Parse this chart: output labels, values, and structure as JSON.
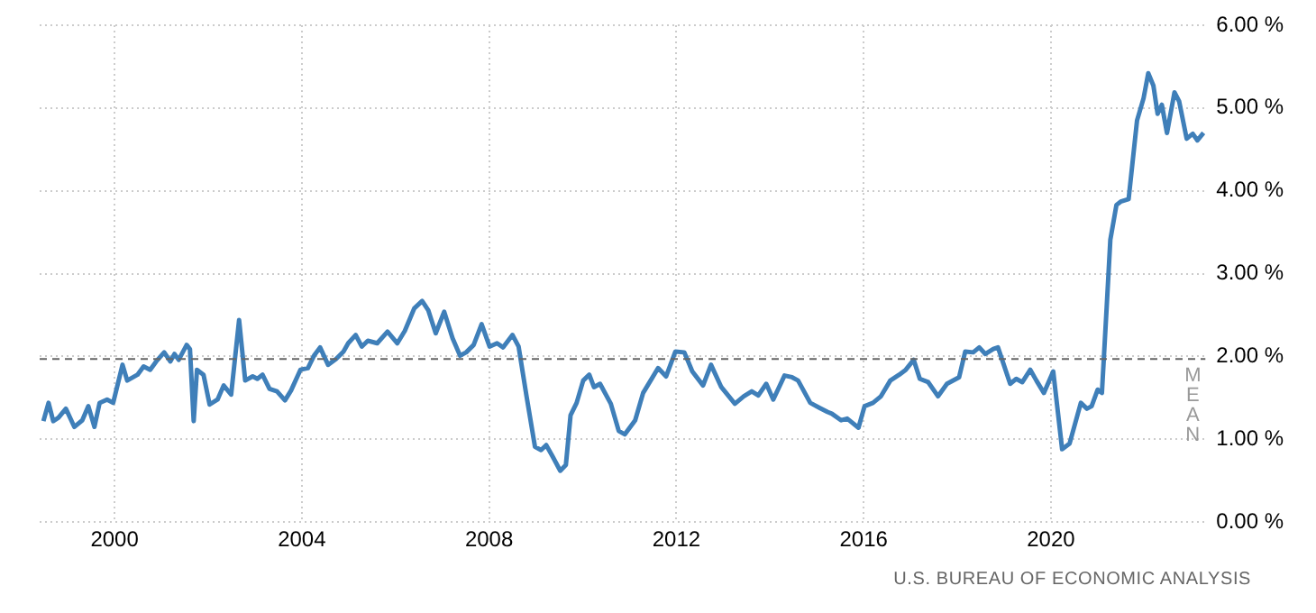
{
  "chart_data": {
    "type": "line",
    "x": [
      1998.48,
      1998.59,
      1998.69,
      1998.8,
      1998.96,
      1999.14,
      1999.31,
      1999.44,
      1999.57,
      1999.68,
      1999.84,
      1999.97,
      2000.17,
      2000.27,
      2000.49,
      2000.62,
      2000.76,
      2000.89,
      2001.06,
      2001.19,
      2001.28,
      2001.37,
      2001.54,
      2001.61,
      2001.69,
      2001.76,
      2001.9,
      2002.03,
      2002.2,
      2002.33,
      2002.49,
      2002.66,
      2002.79,
      2002.95,
      2003.05,
      2003.16,
      2003.31,
      2003.47,
      2003.64,
      2003.77,
      2003.97,
      2004.13,
      2004.26,
      2004.39,
      2004.56,
      2004.73,
      2004.89,
      2004.99,
      2005.15,
      2005.28,
      2005.41,
      2005.61,
      2005.83,
      2006.04,
      2006.2,
      2006.4,
      2006.57,
      2006.7,
      2006.86,
      2007.04,
      2007.22,
      2007.38,
      2007.51,
      2007.67,
      2007.84,
      2008.01,
      2008.17,
      2008.3,
      2008.5,
      2008.63,
      2008.8,
      2008.98,
      2009.11,
      2009.22,
      2009.35,
      2009.52,
      2009.64,
      2009.74,
      2009.87,
      2010.01,
      2010.14,
      2010.24,
      2010.37,
      2010.6,
      2010.77,
      2010.9,
      2011.12,
      2011.29,
      2011.45,
      2011.61,
      2011.78,
      2011.98,
      2012.17,
      2012.34,
      2012.57,
      2012.74,
      2012.96,
      2013.25,
      2013.44,
      2013.61,
      2013.75,
      2013.92,
      2014.07,
      2014.31,
      2014.47,
      2014.6,
      2014.86,
      2015.06,
      2015.23,
      2015.32,
      2015.52,
      2015.65,
      2015.89,
      2016.02,
      2016.2,
      2016.37,
      2016.57,
      2016.76,
      2016.9,
      2017.07,
      2017.2,
      2017.38,
      2017.59,
      2017.78,
      2018.04,
      2018.17,
      2018.34,
      2018.47,
      2018.6,
      2018.77,
      2018.87,
      2019.13,
      2019.26,
      2019.39,
      2019.56,
      2019.69,
      2019.85,
      2020.05,
      2020.24,
      2020.4,
      2020.64,
      2020.77,
      2020.87,
      2021.0,
      2021.09,
      2021.19,
      2021.27,
      2021.4,
      2021.49,
      2021.66,
      2021.84,
      2021.98,
      2022.08,
      2022.19,
      2022.28,
      2022.37,
      2022.48,
      2022.64,
      2022.74,
      2022.9,
      2023.03,
      2023.13,
      2023.26
    ],
    "series": [
      {
        "color": "#3f7fb9",
        "values": [
          1.22,
          1.44,
          1.22,
          1.26,
          1.37,
          1.15,
          1.23,
          1.4,
          1.15,
          1.44,
          1.48,
          1.44,
          1.9,
          1.71,
          1.78,
          1.88,
          1.84,
          1.94,
          2.05,
          1.94,
          2.03,
          1.96,
          2.14,
          2.09,
          1.22,
          1.84,
          1.78,
          1.42,
          1.48,
          1.65,
          1.54,
          2.44,
          1.71,
          1.76,
          1.73,
          1.78,
          1.61,
          1.58,
          1.47,
          1.59,
          1.84,
          1.86,
          2.01,
          2.11,
          1.9,
          1.97,
          2.06,
          2.16,
          2.26,
          2.12,
          2.19,
          2.16,
          2.3,
          2.16,
          2.31,
          2.58,
          2.67,
          2.56,
          2.28,
          2.54,
          2.22,
          2.01,
          2.05,
          2.14,
          2.39,
          2.12,
          2.16,
          2.11,
          2.26,
          2.12,
          1.52,
          0.91,
          0.87,
          0.93,
          0.8,
          0.62,
          0.69,
          1.29,
          1.44,
          1.71,
          1.78,
          1.63,
          1.67,
          1.43,
          1.1,
          1.06,
          1.23,
          1.56,
          1.71,
          1.86,
          1.76,
          2.06,
          2.05,
          1.82,
          1.65,
          1.9,
          1.63,
          1.43,
          1.52,
          1.58,
          1.53,
          1.67,
          1.48,
          1.77,
          1.75,
          1.71,
          1.44,
          1.38,
          1.33,
          1.31,
          1.23,
          1.25,
          1.14,
          1.4,
          1.44,
          1.52,
          1.71,
          1.78,
          1.84,
          1.96,
          1.73,
          1.69,
          1.52,
          1.67,
          1.75,
          2.06,
          2.05,
          2.11,
          2.03,
          2.09,
          2.11,
          1.67,
          1.73,
          1.69,
          1.84,
          1.71,
          1.56,
          1.82,
          0.88,
          0.95,
          1.44,
          1.37,
          1.4,
          1.6,
          1.56,
          2.58,
          3.41,
          3.83,
          3.87,
          3.9,
          4.85,
          5.12,
          5.42,
          5.27,
          4.93,
          5.04,
          4.7,
          5.19,
          5.08,
          4.63,
          4.69,
          4.61,
          4.7
        ]
      }
    ],
    "xlim": [
      1998.4,
      2023.3
    ],
    "xticks": [
      2000,
      2004,
      2008,
      2012,
      2016,
      2020
    ],
    "ylim": [
      0,
      6
    ],
    "yticks": [
      {
        "value": 0,
        "label": "0.00 %"
      },
      {
        "value": 1,
        "label": "1.00 %"
      },
      {
        "value": 2,
        "label": "2.00 %"
      },
      {
        "value": 3,
        "label": "3.00 %"
      },
      {
        "value": 4,
        "label": "4.00 %"
      },
      {
        "value": 5,
        "label": "5.00 %"
      },
      {
        "value": 6,
        "label": "6.00 %"
      }
    ],
    "ref_lines": [
      {
        "axis": "y",
        "value": 1.97,
        "label": "MEAN",
        "color": "#666666",
        "line_style": "dashed"
      }
    ],
    "annotations": [
      "U.S. BUREAU OF ECONOMIC ANALYSIS"
    ],
    "grid": true,
    "legend": false,
    "marker": "none",
    "line_style": "solid"
  }
}
